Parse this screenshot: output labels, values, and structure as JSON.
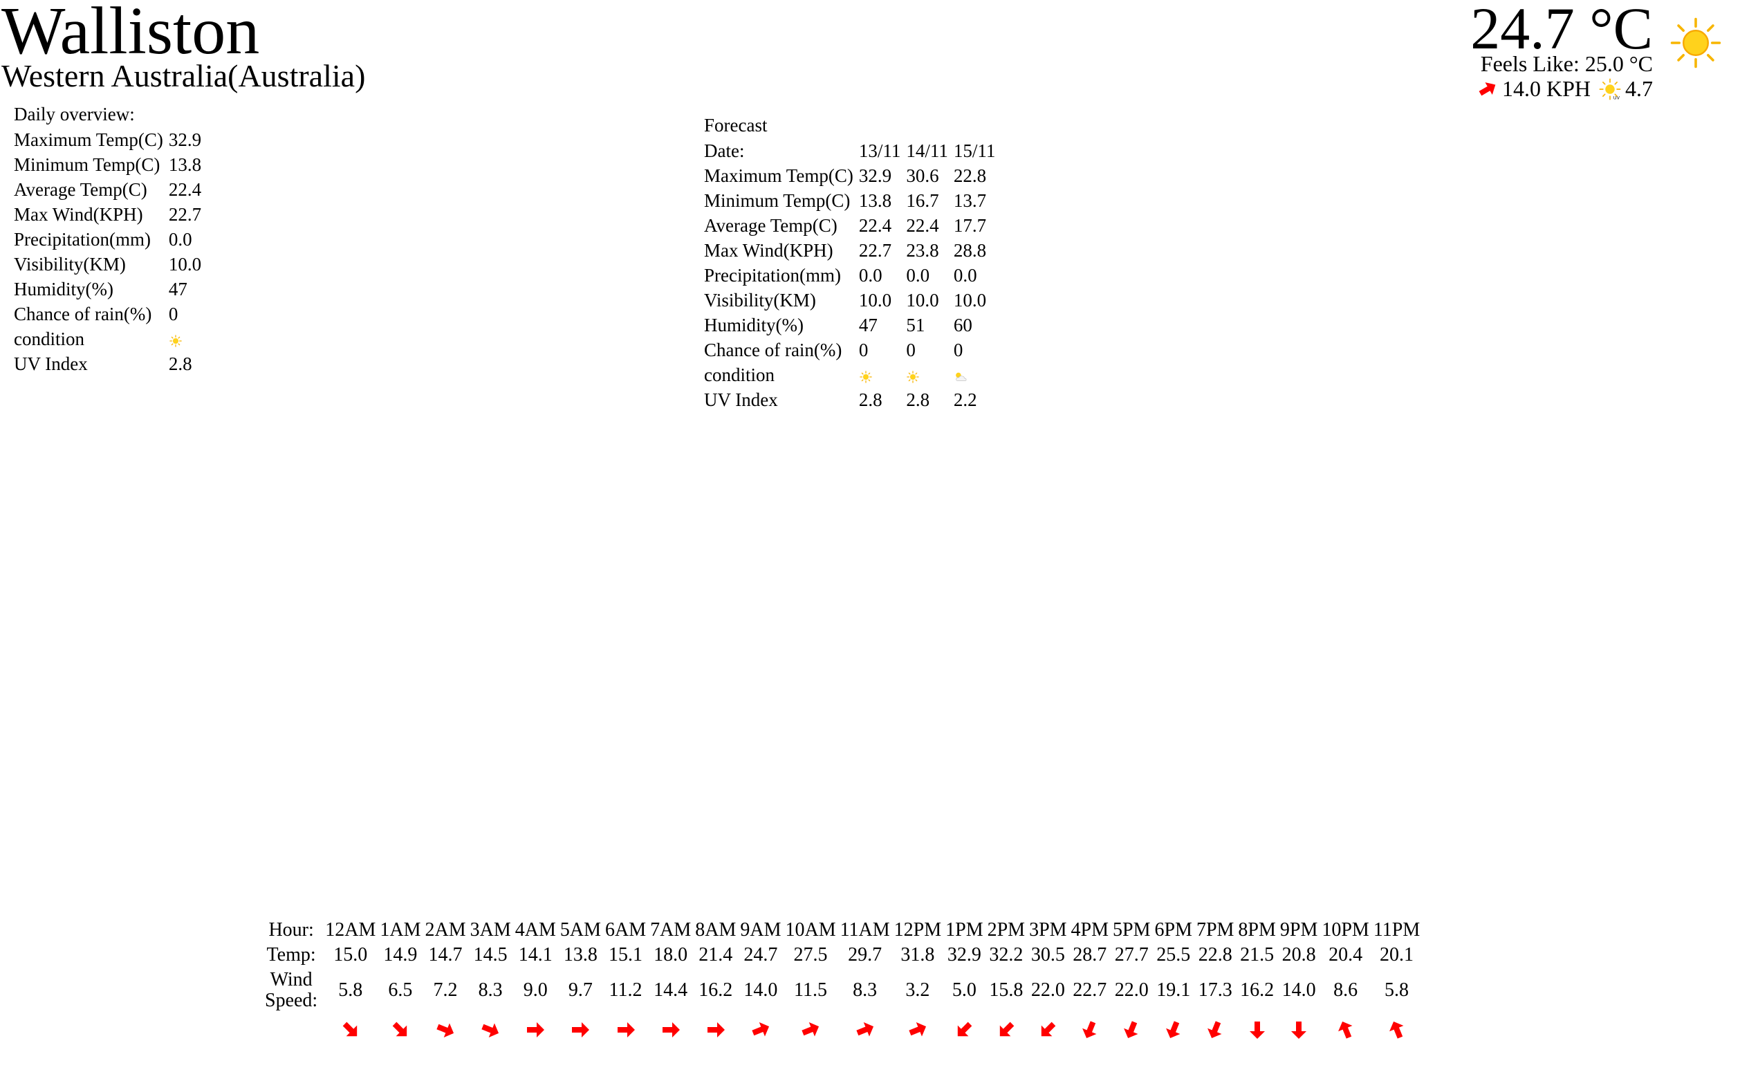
{
  "location": {
    "city": "Walliston",
    "region": "Western Australia(Australia)"
  },
  "current": {
    "temp": "24.7 °C",
    "feels_like": "Feels Like: 25.0 °C",
    "wind": "14.0 KPH",
    "uv": "4.7",
    "condition_icon": "sun-icon",
    "wind_icon": "wind-arrow-icon"
  },
  "daily": {
    "caption": "Daily overview:",
    "rows": [
      {
        "label": "Maximum Temp(C)",
        "value": "32.9"
      },
      {
        "label": "Minimum Temp(C)",
        "value": "13.8"
      },
      {
        "label": "Average Temp(C)",
        "value": "22.4"
      },
      {
        "label": "Max Wind(KPH)",
        "value": "22.7"
      },
      {
        "label": "Precipitation(mm)",
        "value": "0.0"
      },
      {
        "label": "Visibility(KM)",
        "value": "10.0"
      },
      {
        "label": "Humidity(%)",
        "value": "47"
      },
      {
        "label": "Chance of rain(%)",
        "value": "0"
      },
      {
        "label": "condition",
        "value": "",
        "icon": "sun"
      },
      {
        "label": "UV Index",
        "value": "2.8"
      }
    ]
  },
  "forecast": {
    "caption": "Forecast",
    "date_label": "Date:",
    "dates": [
      "13/11",
      "14/11",
      "15/11"
    ],
    "rows": [
      {
        "label": "Maximum Temp(C)",
        "values": [
          "32.9",
          "30.6",
          "22.8"
        ]
      },
      {
        "label": "Minimum Temp(C)",
        "values": [
          "13.8",
          "16.7",
          "13.7"
        ]
      },
      {
        "label": "Average Temp(C)",
        "values": [
          "22.4",
          "22.4",
          "17.7"
        ]
      },
      {
        "label": "Max Wind(KPH)",
        "values": [
          "22.7",
          "23.8",
          "28.8"
        ]
      },
      {
        "label": "Precipitation(mm)",
        "values": [
          "0.0",
          "0.0",
          "0.0"
        ]
      },
      {
        "label": "Visibility(KM)",
        "values": [
          "10.0",
          "10.0",
          "10.0"
        ]
      },
      {
        "label": "Humidity(%)",
        "values": [
          "47",
          "51",
          "60"
        ]
      },
      {
        "label": "Chance of rain(%)",
        "values": [
          "0",
          "0",
          "0"
        ]
      },
      {
        "label": "condition",
        "icons": [
          "sun",
          "sun",
          "partly-cloudy"
        ]
      },
      {
        "label": "UV Index",
        "values": [
          "2.8",
          "2.8",
          "2.2"
        ]
      }
    ]
  },
  "hourly": {
    "hour_label": "Hour:",
    "temp_label": "Temp:",
    "wind_label_1": "Wind",
    "wind_label_2": "Speed:",
    "hours": [
      "12AM",
      "1AM",
      "2AM",
      "3AM",
      "4AM",
      "5AM",
      "6AM",
      "7AM",
      "8AM",
      "9AM",
      "10AM",
      "11AM",
      "12PM",
      "1PM",
      "2PM",
      "3PM",
      "4PM",
      "5PM",
      "6PM",
      "7PM",
      "8PM",
      "9PM",
      "10PM",
      "11PM"
    ],
    "temps": [
      "15.0",
      "14.9",
      "14.7",
      "14.5",
      "14.1",
      "13.8",
      "15.1",
      "18.0",
      "21.4",
      "24.7",
      "27.5",
      "29.7",
      "31.8",
      "32.9",
      "32.2",
      "30.5",
      "28.7",
      "27.7",
      "25.5",
      "22.8",
      "21.5",
      "20.8",
      "20.4",
      "20.1"
    ],
    "wind_speeds": [
      "5.8",
      "6.5",
      "7.2",
      "8.3",
      "9.0",
      "9.7",
      "11.2",
      "14.4",
      "16.2",
      "14.0",
      "11.5",
      "8.3",
      "3.2",
      "5.0",
      "15.8",
      "22.0",
      "22.7",
      "22.0",
      "19.1",
      "17.3",
      "16.2",
      "14.0",
      "8.6",
      "5.8"
    ],
    "wind_dirs_deg": [
      135,
      135,
      112,
      112,
      90,
      90,
      90,
      90,
      90,
      68,
      68,
      68,
      68,
      225,
      225,
      225,
      202,
      202,
      202,
      202,
      180,
      180,
      338,
      338
    ],
    "arrow_color": "#ff0000"
  }
}
